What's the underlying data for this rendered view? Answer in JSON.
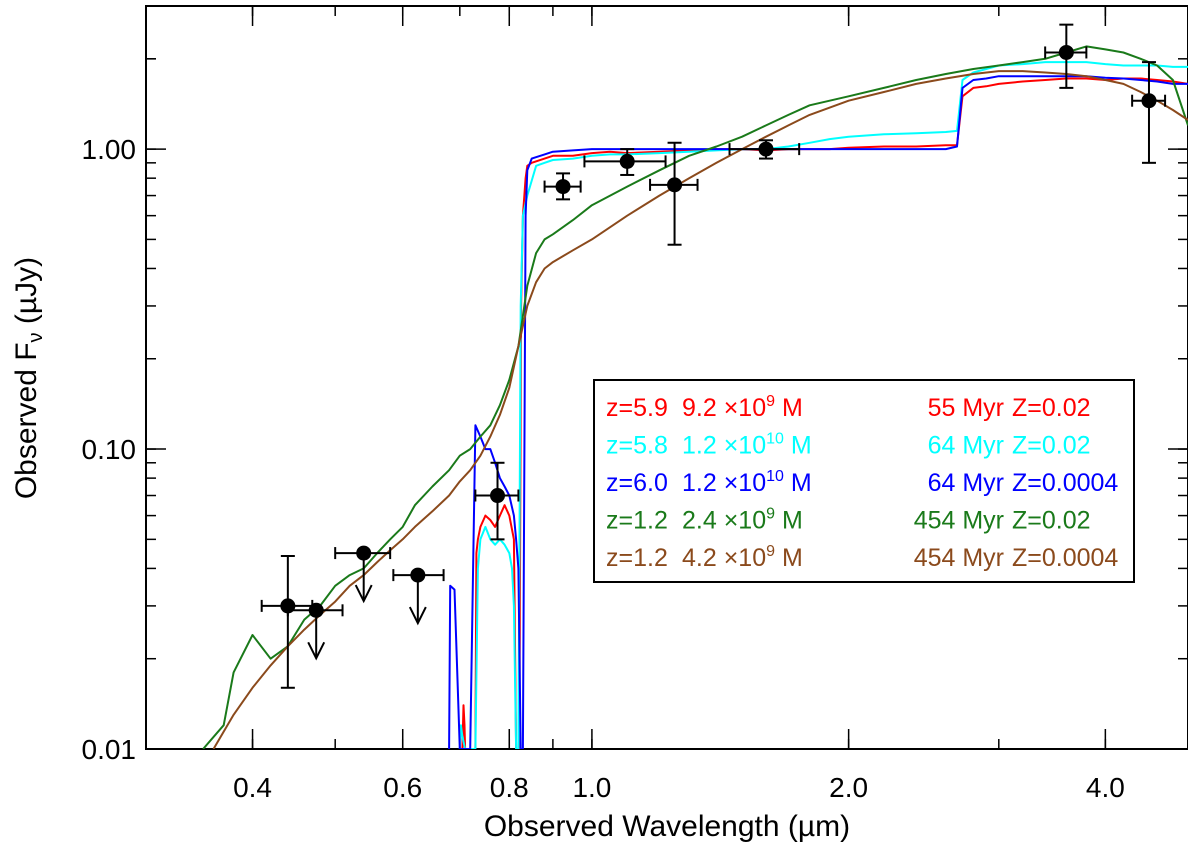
{
  "chart_data": {
    "type": "line",
    "xlabel": "Observed Wavelength (µm)",
    "ylabel": "Observed F",
    "ylabel_sub": "ν",
    "ylabel_unit": " (µJy)",
    "x_scale": "log",
    "y_scale": "log",
    "xlim": [
      0.3,
      5.0
    ],
    "ylim": [
      0.01,
      3.0
    ],
    "x_ticks": [
      0.4,
      0.6,
      0.8,
      1.0,
      2.0,
      4.0
    ],
    "x_tick_labels": [
      "0.4",
      "0.6",
      "0.8",
      "1.0",
      "2.0",
      "4.0"
    ],
    "y_ticks": [
      0.01,
      0.1,
      1.0
    ],
    "y_tick_labels": [
      "0.01",
      "0.10",
      "1.00"
    ],
    "grid": false,
    "legend_position": "center-right",
    "colors": {
      "red": "#ff0000",
      "cyan": "#00ffff",
      "blue": "#0000ff",
      "green": "#1a7a1a",
      "brown": "#8b4a1c",
      "points": "#000000"
    },
    "series": [
      {
        "color": "#ff0000",
        "legend": {
          "z": "z=5.9",
          "mass_base": "9.2 ×10",
          "mass_exp": "9",
          "mass_unit": " M",
          "age": "55 Myr",
          "metal": "Z=0.02"
        },
        "x": [
          0.705,
          0.707,
          0.709,
          0.71,
          0.712,
          0.72,
          0.725,
          0.73,
          0.732,
          0.735,
          0.74,
          0.75,
          0.76,
          0.77,
          0.78,
          0.79,
          0.8,
          0.81,
          0.815,
          0.818,
          0.822,
          0.826,
          0.83,
          0.836,
          0.84,
          0.85,
          0.88,
          0.9,
          0.95,
          1.0,
          1.05,
          1.1,
          1.2,
          1.3,
          1.4,
          1.5,
          1.6,
          1.7,
          1.8,
          1.9,
          2.0,
          2.2,
          2.4,
          2.6,
          2.68,
          2.72,
          2.8,
          2.9,
          3.0,
          3.2,
          3.4,
          3.6,
          3.8,
          4.0,
          4.2,
          4.4,
          4.6,
          4.8,
          5.0
        ],
        "y": [
          0.01,
          0.014,
          0.012,
          0.01,
          0.01,
          0.01,
          0.01,
          0.01,
          0.045,
          0.05,
          0.055,
          0.06,
          0.058,
          0.055,
          0.06,
          0.065,
          0.06,
          0.05,
          0.01,
          0.01,
          0.01,
          0.3,
          0.6,
          0.8,
          0.88,
          0.9,
          0.93,
          0.95,
          0.95,
          0.97,
          0.98,
          0.97,
          0.98,
          0.99,
          1.0,
          1.0,
          0.99,
          1.0,
          1.0,
          1.0,
          1.01,
          1.02,
          1.02,
          1.03,
          1.03,
          1.5,
          1.6,
          1.62,
          1.65,
          1.68,
          1.7,
          1.72,
          1.72,
          1.7,
          1.72,
          1.72,
          1.7,
          1.68,
          1.65
        ]
      },
      {
        "color": "#00ffff",
        "legend": {
          "z": "z=5.8",
          "mass_base": "1.2 ×10",
          "mass_exp": "10",
          "mass_unit": " M",
          "age": "64 Myr",
          "metal": "Z=0.02"
        },
        "x": [
          0.7,
          0.702,
          0.705,
          0.71,
          0.72,
          0.73,
          0.735,
          0.74,
          0.75,
          0.76,
          0.77,
          0.78,
          0.79,
          0.8,
          0.806,
          0.81,
          0.815,
          0.82,
          0.825,
          0.83,
          0.84,
          0.86,
          0.88,
          0.9,
          0.95,
          1.0,
          1.05,
          1.1,
          1.2,
          1.3,
          1.4,
          1.5,
          1.6,
          1.7,
          1.8,
          1.9,
          2.0,
          2.2,
          2.4,
          2.6,
          2.68,
          2.72,
          2.8,
          2.9,
          3.0,
          3.2,
          3.4,
          3.6,
          3.8,
          4.0,
          4.2,
          4.4,
          4.6,
          4.8,
          5.0
        ],
        "y": [
          0.01,
          0.012,
          0.011,
          0.01,
          0.01,
          0.01,
          0.04,
          0.05,
          0.055,
          0.05,
          0.048,
          0.05,
          0.048,
          0.045,
          0.04,
          0.03,
          0.01,
          0.01,
          0.3,
          0.6,
          0.7,
          0.88,
          0.9,
          0.92,
          0.93,
          0.95,
          0.96,
          0.96,
          0.97,
          0.98,
          0.99,
          1.0,
          1.0,
          1.02,
          1.05,
          1.08,
          1.1,
          1.12,
          1.13,
          1.14,
          1.15,
          1.7,
          1.8,
          1.85,
          1.9,
          1.92,
          1.95,
          1.95,
          1.95,
          1.92,
          1.9,
          1.9,
          1.9,
          1.88,
          1.88
        ]
      },
      {
        "color": "#0000ff",
        "legend": {
          "z": "z=6.0",
          "mass_base": "1.2 ×10",
          "mass_exp": "10",
          "mass_unit": " M",
          "age": "64 Myr",
          "metal": "Z=0.0004"
        },
        "x": [
          0.68,
          0.682,
          0.69,
          0.7,
          0.703,
          0.705,
          0.72,
          0.73,
          0.74,
          0.75,
          0.76,
          0.77,
          0.78,
          0.79,
          0.8,
          0.81,
          0.815,
          0.82,
          0.825,
          0.83,
          0.836,
          0.84,
          0.85,
          0.88,
          0.9,
          0.95,
          1.0,
          1.05,
          1.1,
          1.2,
          1.3,
          1.4,
          1.5,
          1.6,
          1.7,
          1.8,
          1.9,
          2.0,
          2.2,
          2.4,
          2.6,
          2.68,
          2.72,
          2.8,
          2.9,
          3.0,
          3.2,
          3.4,
          3.6,
          3.8,
          4.0,
          4.2,
          4.4,
          4.6,
          4.8,
          5.0
        ],
        "y": [
          0.01,
          0.035,
          0.034,
          0.01,
          0.01,
          0.01,
          0.01,
          0.12,
          0.11,
          0.1,
          0.1,
          0.09,
          0.08,
          0.075,
          0.07,
          0.06,
          0.05,
          0.04,
          0.01,
          0.01,
          0.6,
          0.85,
          0.93,
          0.96,
          0.98,
          0.99,
          1.0,
          1.0,
          1.0,
          1.0,
          1.0,
          1.0,
          1.0,
          1.0,
          1.0,
          1.0,
          1.0,
          1.0,
          1.0,
          1.0,
          1.0,
          1.02,
          1.6,
          1.7,
          1.72,
          1.75,
          1.75,
          1.75,
          1.75,
          1.75,
          1.73,
          1.72,
          1.7,
          1.68,
          1.65,
          1.65
        ]
      },
      {
        "color": "#1a7a1a",
        "legend": {
          "z": "z=1.2",
          "mass_base": "2.4 ×10",
          "mass_exp": "9",
          "mass_unit": " M",
          "age": "454 Myr",
          "metal": "Z=0.02"
        },
        "x": [
          0.35,
          0.37,
          0.38,
          0.4,
          0.42,
          0.44,
          0.46,
          0.48,
          0.5,
          0.52,
          0.54,
          0.56,
          0.58,
          0.6,
          0.62,
          0.65,
          0.68,
          0.7,
          0.72,
          0.74,
          0.76,
          0.78,
          0.8,
          0.82,
          0.84,
          0.86,
          0.88,
          0.9,
          0.95,
          1.0,
          1.1,
          1.2,
          1.3,
          1.4,
          1.5,
          1.6,
          1.7,
          1.8,
          2.0,
          2.2,
          2.4,
          2.6,
          2.8,
          3.0,
          3.2,
          3.4,
          3.6,
          3.8,
          4.0,
          4.2,
          4.4,
          4.6,
          4.8,
          5.0
        ],
        "y": [
          0.01,
          0.012,
          0.018,
          0.024,
          0.02,
          0.022,
          0.027,
          0.03,
          0.035,
          0.038,
          0.04,
          0.045,
          0.05,
          0.055,
          0.065,
          0.075,
          0.085,
          0.095,
          0.1,
          0.11,
          0.12,
          0.14,
          0.17,
          0.22,
          0.35,
          0.45,
          0.5,
          0.52,
          0.58,
          0.65,
          0.75,
          0.85,
          0.95,
          1.02,
          1.1,
          1.2,
          1.3,
          1.4,
          1.5,
          1.6,
          1.7,
          1.78,
          1.85,
          1.9,
          1.95,
          2.0,
          2.1,
          2.2,
          2.15,
          2.1,
          2.0,
          1.9,
          1.7,
          1.2
        ]
      },
      {
        "color": "#8b4a1c",
        "legend": {
          "z": "z=1.2",
          "mass_base": "4.2 ×10",
          "mass_exp": "9",
          "mass_unit": " M",
          "age": "454 Myr",
          "metal": "Z=0.0004"
        },
        "x": [
          0.36,
          0.38,
          0.4,
          0.42,
          0.44,
          0.46,
          0.48,
          0.5,
          0.52,
          0.54,
          0.56,
          0.58,
          0.6,
          0.62,
          0.65,
          0.68,
          0.7,
          0.72,
          0.74,
          0.76,
          0.78,
          0.8,
          0.82,
          0.84,
          0.86,
          0.88,
          0.9,
          0.95,
          1.0,
          1.1,
          1.2,
          1.3,
          1.4,
          1.5,
          1.6,
          1.7,
          1.8,
          2.0,
          2.2,
          2.4,
          2.6,
          2.8,
          3.0,
          3.2,
          3.4,
          3.6,
          3.8,
          4.0,
          4.2,
          4.4,
          4.6,
          4.8,
          5.0
        ],
        "y": [
          0.01,
          0.013,
          0.016,
          0.019,
          0.022,
          0.025,
          0.028,
          0.031,
          0.035,
          0.038,
          0.042,
          0.046,
          0.05,
          0.055,
          0.062,
          0.07,
          0.078,
          0.085,
          0.095,
          0.11,
          0.13,
          0.16,
          0.22,
          0.3,
          0.36,
          0.4,
          0.42,
          0.46,
          0.5,
          0.6,
          0.7,
          0.8,
          0.9,
          1.0,
          1.1,
          1.2,
          1.3,
          1.45,
          1.55,
          1.65,
          1.72,
          1.78,
          1.82,
          1.82,
          1.8,
          1.78,
          1.75,
          1.7,
          1.65,
          1.55,
          1.45,
          1.35,
          1.25
        ]
      }
    ],
    "points": [
      {
        "x": 0.44,
        "y": 0.03,
        "xerr": [
          0.41,
          0.47
        ],
        "yerr": [
          0.016,
          0.044
        ],
        "upper_limit": false
      },
      {
        "x": 0.475,
        "y": 0.029,
        "xerr": [
          0.44,
          0.51
        ],
        "yerr": null,
        "upper_limit": true
      },
      {
        "x": 0.54,
        "y": 0.045,
        "xerr": [
          0.5,
          0.58
        ],
        "yerr": null,
        "upper_limit": true
      },
      {
        "x": 0.625,
        "y": 0.038,
        "xerr": [
          0.585,
          0.67
        ],
        "yerr": null,
        "upper_limit": true
      },
      {
        "x": 0.775,
        "y": 0.07,
        "xerr": [
          0.73,
          0.82
        ],
        "yerr": [
          0.05,
          0.09
        ],
        "upper_limit": false
      },
      {
        "x": 0.925,
        "y": 0.75,
        "xerr": [
          0.88,
          0.97
        ],
        "yerr": [
          0.68,
          0.83
        ],
        "upper_limit": false
      },
      {
        "x": 1.1,
        "y": 0.91,
        "xerr": [
          0.98,
          1.22
        ],
        "yerr": [
          0.82,
          1.0
        ],
        "upper_limit": false
      },
      {
        "x": 1.25,
        "y": 0.76,
        "xerr": [
          1.17,
          1.33
        ],
        "yerr": [
          0.48,
          1.05
        ],
        "upper_limit": false
      },
      {
        "x": 1.6,
        "y": 1.0,
        "xerr": [
          1.45,
          1.75
        ],
        "yerr": [
          0.93,
          1.07
        ],
        "upper_limit": false
      },
      {
        "x": 3.6,
        "y": 2.1,
        "xerr": [
          3.4,
          3.8
        ],
        "yerr": [
          1.6,
          2.6
        ],
        "upper_limit": false
      },
      {
        "x": 4.5,
        "y": 1.45,
        "xerr": [
          4.3,
          4.7
        ],
        "yerr": [
          0.9,
          1.95
        ],
        "upper_limit": false
      }
    ]
  }
}
